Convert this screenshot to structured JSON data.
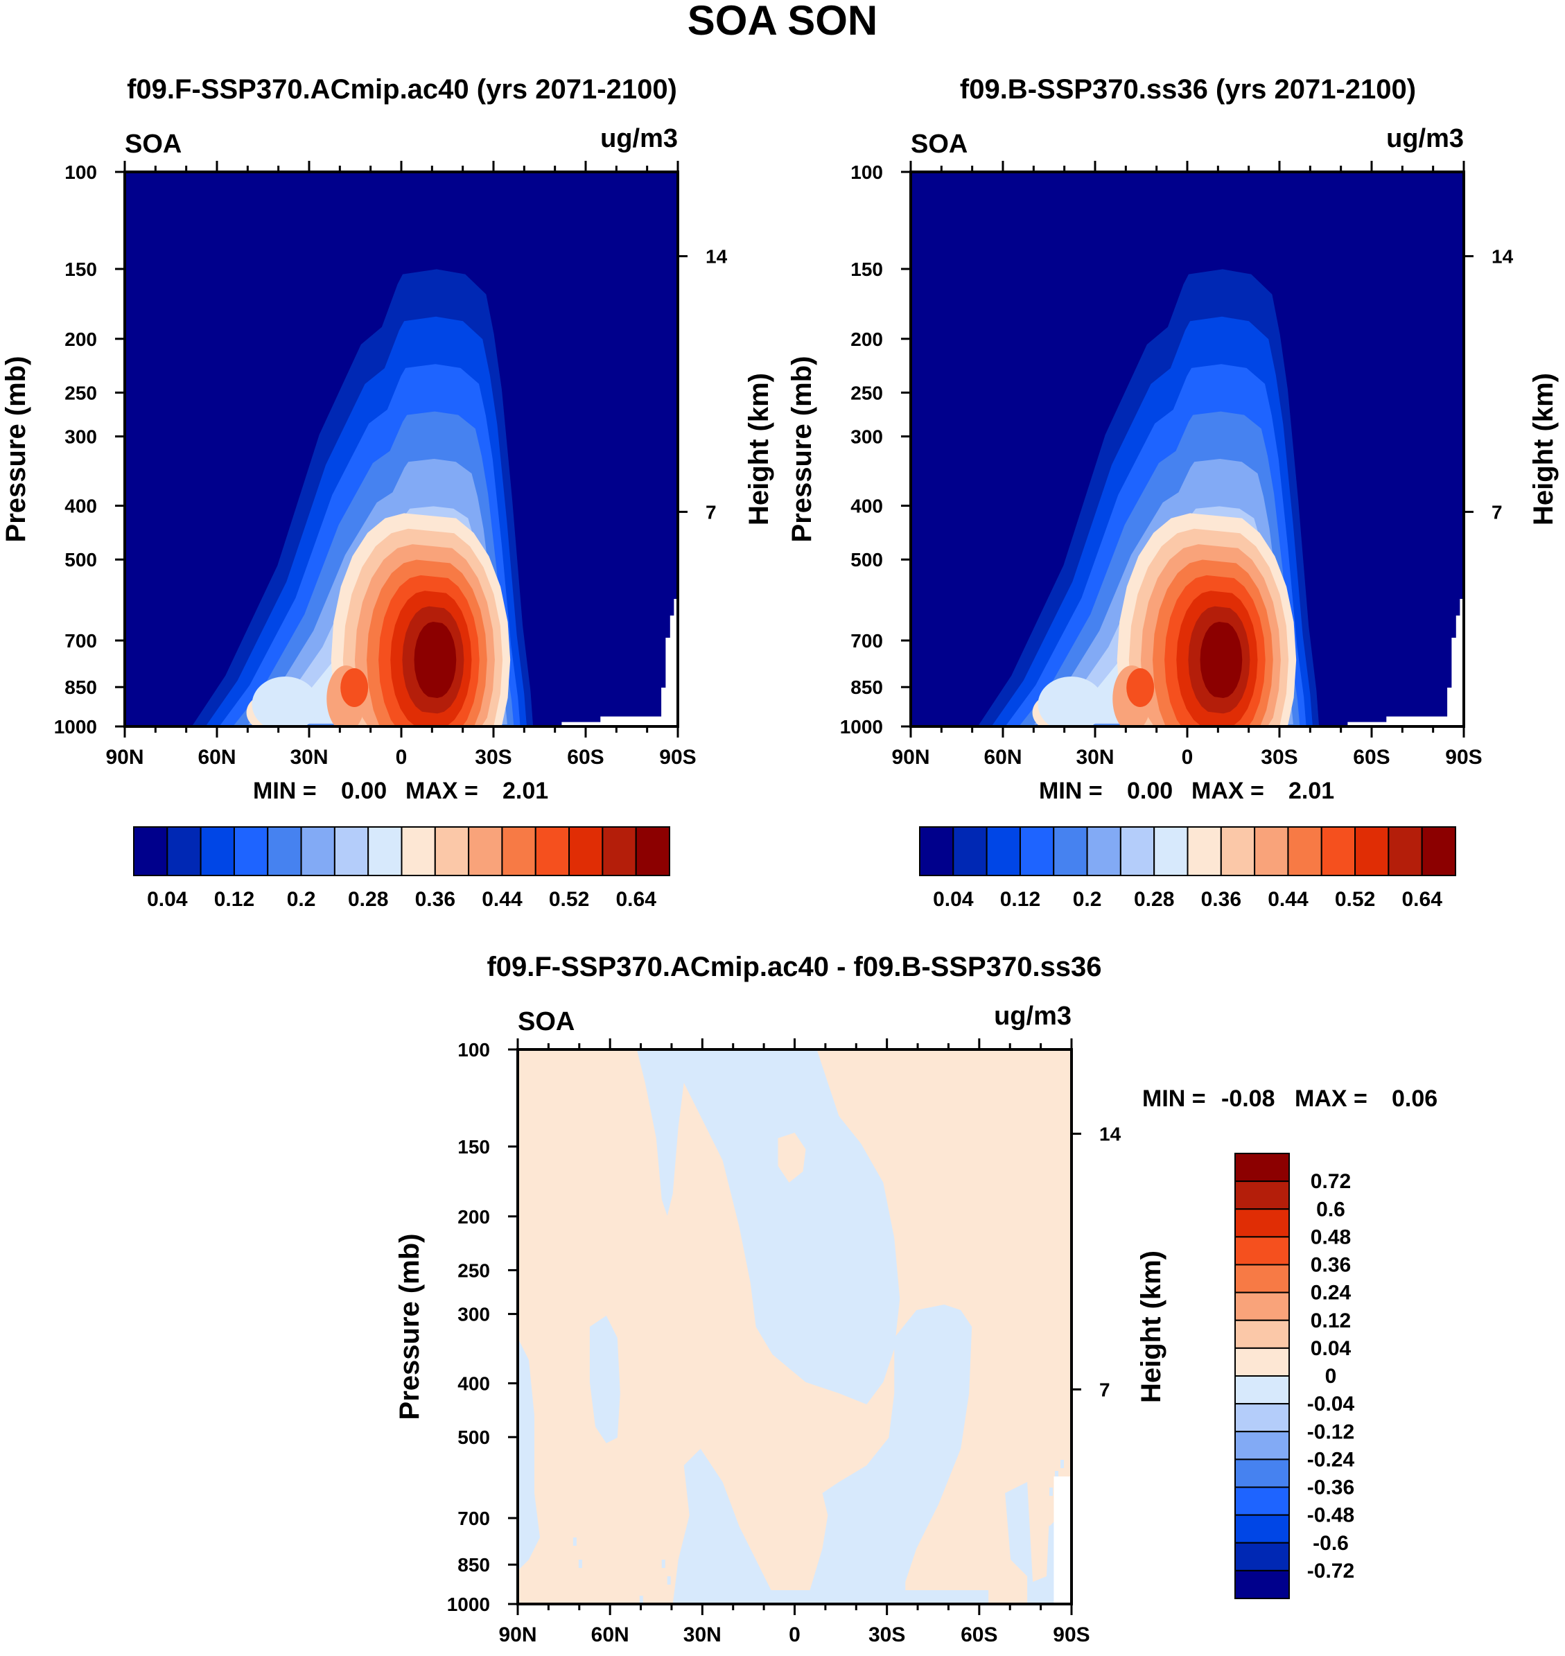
{
  "page": {
    "title": "SOA SON"
  },
  "colors": {
    "main_levels": [
      "#00008c",
      "#0028b4",
      "#0046e6",
      "#1e64ff",
      "#4682f0",
      "#82aaf5",
      "#b4cdfa",
      "#d7e9fc",
      "#fde7d4",
      "#fbc8a8",
      "#f9a37a",
      "#f77a45",
      "#f5501e",
      "#e02d05",
      "#b41e0a",
      "#8c0000"
    ],
    "diff_levels": [
      "#00008c",
      "#0028b4",
      "#0046e6",
      "#1e64ff",
      "#4682f0",
      "#82aaf5",
      "#b4cdfa",
      "#d7e9fc",
      "#fde7d4",
      "#fbc8a8",
      "#f9a37a",
      "#f77a45",
      "#f5501e",
      "#e02d05",
      "#b41e0a",
      "#8c0000"
    ],
    "missing": "#ffffff"
  },
  "chart_data": [
    {
      "type": "heatmap",
      "title": "f09.F-SSP370.ACmip.ac40 (yrs 2071-2100)",
      "left_label": "SOA",
      "right_label": "ug/m3",
      "xlabel": "",
      "ylabel": "Pressure (mb)",
      "y2label": "Height (km)",
      "x_ticks": [
        "90N",
        "60N",
        "30N",
        "0",
        "30S",
        "60S",
        "90S"
      ],
      "y_ticks": [
        "100",
        "150",
        "200",
        "250",
        "300",
        "400",
        "500",
        "700",
        "850",
        "1000"
      ],
      "y2_ticks": [
        "14",
        "7"
      ],
      "stats": {
        "min_label": "MIN =",
        "min": "0.00",
        "max_label": "MAX =",
        "max": "2.01"
      },
      "colorbar": {
        "labels": [
          "0.04",
          "0.12",
          "0.2",
          "0.28",
          "0.36",
          "0.44",
          "0.52",
          "0.64"
        ],
        "num_boxes": 16
      },
      "field": "SOA zonal-mean concentration, maximum about 2.01 near 10S at 700-850 mb"
    },
    {
      "type": "heatmap",
      "title": "f09.B-SSP370.ss36 (yrs 2071-2100)",
      "left_label": "SOA",
      "right_label": "ug/m3",
      "xlabel": "",
      "ylabel": "Pressure (mb)",
      "y2label": "Height (km)",
      "x_ticks": [
        "90N",
        "60N",
        "30N",
        "0",
        "30S",
        "60S",
        "90S"
      ],
      "y_ticks": [
        "100",
        "150",
        "200",
        "250",
        "300",
        "400",
        "500",
        "700",
        "850",
        "1000"
      ],
      "y2_ticks": [
        "14",
        "7"
      ],
      "stats": {
        "min_label": "MIN =",
        "min": "0.00",
        "max_label": "MAX =",
        "max": "2.01"
      },
      "colorbar": {
        "labels": [
          "0.04",
          "0.12",
          "0.2",
          "0.28",
          "0.36",
          "0.44",
          "0.52",
          "0.64"
        ],
        "num_boxes": 16
      },
      "field": "SOA zonal-mean concentration, maximum about 2.01 near 10S at 700-850 mb"
    },
    {
      "type": "heatmap",
      "title": "f09.F-SSP370.ACmip.ac40 - f09.B-SSP370.ss36",
      "left_label": "SOA",
      "right_label": "ug/m3",
      "xlabel": "",
      "ylabel": "Pressure (mb)",
      "y2label": "Height (km)",
      "x_ticks": [
        "90N",
        "60N",
        "30N",
        "0",
        "30S",
        "60S",
        "90S"
      ],
      "y_ticks": [
        "100",
        "150",
        "200",
        "250",
        "300",
        "400",
        "500",
        "700",
        "850",
        "1000"
      ],
      "y2_ticks": [
        "14",
        "7"
      ],
      "stats": {
        "min_label": "MIN =",
        "min": "-0.08",
        "max_label": "MAX =",
        "max": "0.06"
      },
      "colorbar": {
        "labels": [
          "0.72",
          "0.6",
          "0.48",
          "0.36",
          "0.24",
          "0.12",
          "0.04",
          "0",
          "-0.04",
          "-0.12",
          "-0.24",
          "-0.36",
          "-0.48",
          "-0.6",
          "-0.72"
        ],
        "num_boxes": 16
      },
      "field": "difference, values between -0.08 and 0.06"
    }
  ]
}
